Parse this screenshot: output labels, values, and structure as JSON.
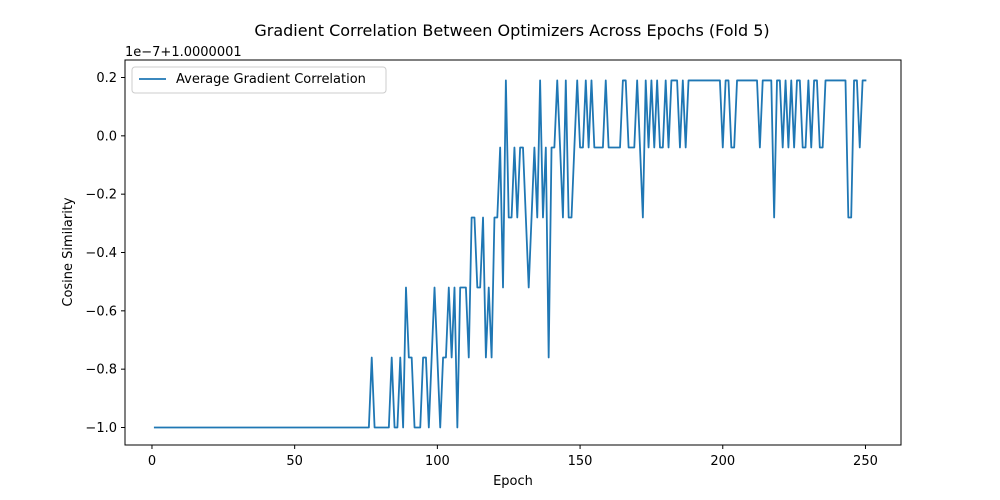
{
  "chart_data": {
    "type": "line",
    "title": "Gradient Correlation Between Optimizers Across Epochs (Fold 5)",
    "xlabel": "Epoch",
    "ylabel": "Cosine Similarity",
    "offset_text": "1e−7+1.0000001",
    "xlim": [
      -9.45,
      262.45
    ],
    "ylim": [
      -1.06,
      0.26
    ],
    "x_ticks": [
      0,
      50,
      100,
      150,
      200,
      250
    ],
    "x_tick_labels": [
      "0",
      "50",
      "100",
      "150",
      "200",
      "250"
    ],
    "y_ticks": [
      -1.0,
      -0.8,
      -0.6,
      -0.4,
      -0.2,
      0.0,
      0.2
    ],
    "y_tick_labels": [
      "−1.0",
      "−0.8",
      "−0.6",
      "−0.4",
      "−0.2",
      "0.0",
      "0.2"
    ],
    "grid": false,
    "legend_position": "top-left",
    "series": [
      {
        "name": "Average Gradient Correlation",
        "color": "#1f77b4",
        "x": [
          1,
          2,
          3,
          4,
          5,
          6,
          7,
          8,
          9,
          10,
          11,
          12,
          13,
          14,
          15,
          16,
          17,
          18,
          19,
          20,
          21,
          22,
          23,
          24,
          25,
          26,
          27,
          28,
          29,
          30,
          31,
          32,
          33,
          34,
          35,
          36,
          37,
          38,
          39,
          40,
          41,
          42,
          43,
          44,
          45,
          46,
          47,
          48,
          49,
          50,
          51,
          52,
          53,
          54,
          55,
          56,
          57,
          58,
          59,
          60,
          61,
          62,
          63,
          64,
          65,
          66,
          67,
          68,
          69,
          70,
          71,
          72,
          73,
          74,
          75,
          76,
          77,
          78,
          79,
          80,
          81,
          82,
          83,
          84,
          85,
          86,
          87,
          88,
          89,
          90,
          91,
          92,
          93,
          94,
          95,
          96,
          97,
          98,
          99,
          100,
          101,
          102,
          103,
          104,
          105,
          106,
          107,
          108,
          109,
          110,
          111,
          112,
          113,
          114,
          115,
          116,
          117,
          118,
          119,
          120,
          121,
          122,
          123,
          124,
          125,
          126,
          127,
          128,
          129,
          130,
          131,
          132,
          133,
          134,
          135,
          136,
          137,
          138,
          139,
          140,
          141,
          142,
          143,
          144,
          145,
          146,
          147,
          148,
          149,
          150,
          151,
          152,
          153,
          154,
          155,
          156,
          157,
          158,
          159,
          160,
          161,
          162,
          163,
          164,
          165,
          166,
          167,
          168,
          169,
          170,
          171,
          172,
          173,
          174,
          175,
          176,
          177,
          178,
          179,
          180,
          181,
          182,
          183,
          184,
          185,
          186,
          187,
          188,
          189,
          190,
          191,
          192,
          193,
          194,
          195,
          196,
          197,
          198,
          199,
          200,
          201,
          202,
          203,
          204,
          205,
          206,
          207,
          208,
          209,
          210,
          211,
          212,
          213,
          214,
          215,
          216,
          217,
          218,
          219,
          220,
          221,
          222,
          223,
          224,
          225,
          226,
          227,
          228,
          229,
          230,
          231,
          232,
          233,
          234,
          235,
          236,
          237,
          238,
          239,
          240,
          241,
          242,
          243,
          244,
          245,
          246,
          247,
          248,
          249,
          250
        ],
        "y": [
          -1.0,
          -1.0,
          -1.0,
          -1.0,
          -1.0,
          -1.0,
          -1.0,
          -1.0,
          -1.0,
          -1.0,
          -1.0,
          -1.0,
          -1.0,
          -1.0,
          -1.0,
          -1.0,
          -1.0,
          -1.0,
          -1.0,
          -1.0,
          -1.0,
          -1.0,
          -1.0,
          -1.0,
          -1.0,
          -1.0,
          -1.0,
          -1.0,
          -1.0,
          -1.0,
          -1.0,
          -1.0,
          -1.0,
          -1.0,
          -1.0,
          -1.0,
          -1.0,
          -1.0,
          -1.0,
          -1.0,
          -1.0,
          -1.0,
          -1.0,
          -1.0,
          -1.0,
          -1.0,
          -1.0,
          -1.0,
          -1.0,
          -1.0,
          -1.0,
          -1.0,
          -1.0,
          -1.0,
          -1.0,
          -1.0,
          -1.0,
          -1.0,
          -1.0,
          -1.0,
          -1.0,
          -1.0,
          -1.0,
          -1.0,
          -1.0,
          -1.0,
          -1.0,
          -1.0,
          -1.0,
          -1.0,
          -1.0,
          -1.0,
          -1.0,
          -1.0,
          -1.0,
          -1.0,
          -0.76,
          -1.0,
          -1.0,
          -1.0,
          -1.0,
          -1.0,
          -1.0,
          -0.76,
          -1.0,
          -1.0,
          -0.76,
          -1.0,
          -0.52,
          -0.76,
          -0.76,
          -1.0,
          -1.0,
          -1.0,
          -0.76,
          -0.76,
          -1.0,
          -0.76,
          -0.52,
          -0.76,
          -1.0,
          -0.76,
          -0.76,
          -0.52,
          -0.76,
          -0.52,
          -1.0,
          -0.52,
          -0.52,
          -0.52,
          -0.76,
          -0.28,
          -0.28,
          -0.52,
          -0.52,
          -0.28,
          -0.76,
          -0.52,
          -0.76,
          -0.28,
          -0.28,
          -0.04,
          -0.52,
          0.19,
          -0.28,
          -0.28,
          -0.04,
          -0.28,
          -0.04,
          -0.04,
          -0.28,
          -0.52,
          -0.28,
          -0.04,
          -0.28,
          0.19,
          -0.28,
          -0.04,
          -0.76,
          -0.04,
          -0.04,
          0.19,
          -0.04,
          -0.28,
          0.19,
          -0.28,
          -0.28,
          -0.04,
          0.19,
          -0.04,
          -0.04,
          0.19,
          -0.04,
          0.19,
          -0.04,
          -0.04,
          -0.04,
          -0.04,
          0.19,
          -0.04,
          -0.04,
          -0.04,
          -0.04,
          -0.04,
          0.19,
          0.19,
          -0.04,
          -0.04,
          -0.04,
          0.19,
          -0.04,
          -0.28,
          0.19,
          -0.04,
          0.19,
          -0.04,
          0.19,
          -0.04,
          -0.04,
          0.19,
          -0.04,
          0.19,
          0.19,
          0.19,
          -0.04,
          0.19,
          -0.04,
          0.19,
          0.19,
          0.19,
          0.19,
          0.19,
          0.19,
          0.19,
          0.19,
          0.19,
          0.19,
          0.19,
          0.19,
          -0.04,
          0.19,
          0.19,
          -0.04,
          -0.04,
          0.19,
          0.19,
          0.19,
          0.19,
          0.19,
          0.19,
          0.19,
          0.19,
          -0.04,
          0.19,
          0.19,
          0.19,
          0.19,
          -0.28,
          0.19,
          0.19,
          -0.04,
          0.19,
          -0.04,
          0.19,
          -0.04,
          0.19,
          0.19,
          -0.04,
          -0.04,
          0.19,
          -0.04,
          0.19,
          0.19,
          -0.04,
          -0.04,
          0.19,
          0.19,
          0.19,
          0.19,
          0.19,
          0.19,
          0.19,
          0.19,
          -0.28,
          -0.28,
          0.19,
          0.19,
          -0.04,
          0.19,
          0.19
        ]
      }
    ]
  }
}
